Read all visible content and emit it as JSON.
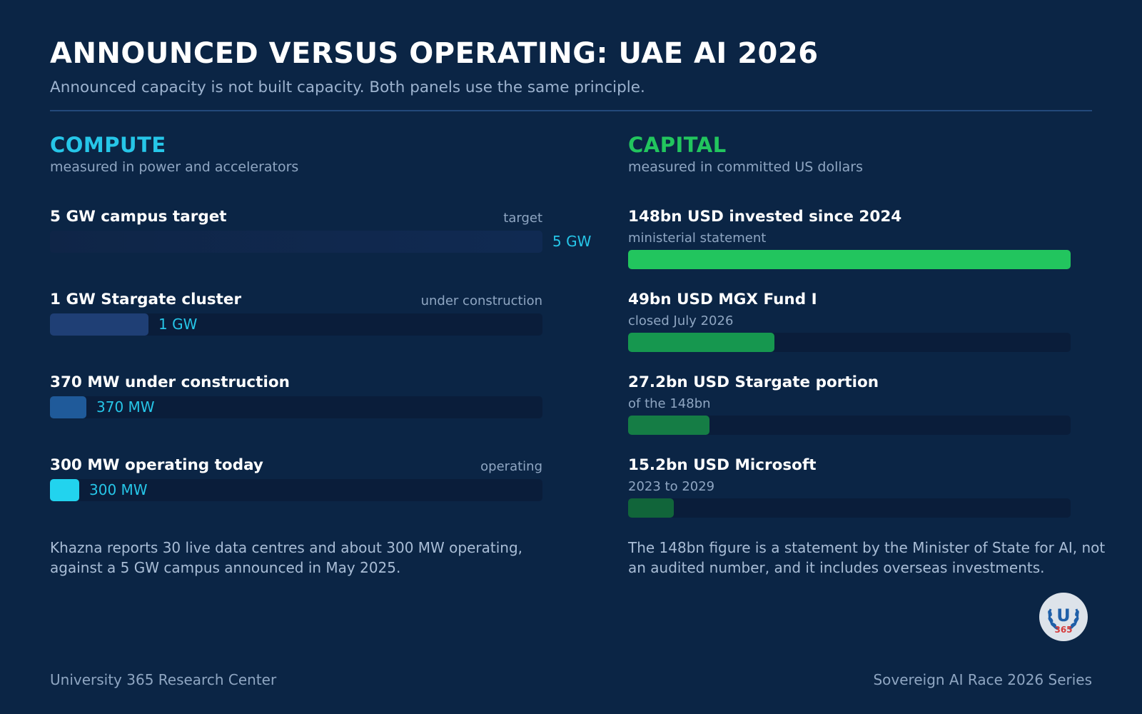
{
  "header": {
    "title": "ANNOUNCED VERSUS OPERATING: UAE AI 2026",
    "subtitle": "Announced capacity is not built capacity. Both panels use the same principle."
  },
  "colors": {
    "background": "#0b2545",
    "compute_accent": "#26c6e8",
    "capital_accent": "#22c55e"
  },
  "chart_data": [
    {
      "type": "bar",
      "title": "COMPUTE",
      "subtitle": "measured in power and accelerators",
      "unit": "MW",
      "xlim": [
        0,
        5000
      ],
      "bars": [
        {
          "label": "5 GW campus target",
          "status": "target",
          "value": 5000,
          "value_label": "5 GW",
          "color": "#102a52"
        },
        {
          "label": "1 GW Stargate cluster",
          "status": "under construction",
          "value": 1000,
          "value_label": "1 GW",
          "color": "#1f3f75"
        },
        {
          "label": "370 MW under construction",
          "status": "",
          "value": 370,
          "value_label": "370 MW",
          "color": "#1f5a9a"
        },
        {
          "label": "300 MW operating today",
          "status": "operating",
          "value": 300,
          "value_label": "300 MW",
          "color": "#22d3ee"
        }
      ],
      "note": "Khazna reports 30 live data centres and about 300 MW operating, against a 5 GW campus announced in May 2025."
    },
    {
      "type": "bar",
      "title": "CAPITAL",
      "subtitle": "measured in committed US dollars",
      "unit": "bn USD",
      "xlim": [
        0,
        148
      ],
      "bars": [
        {
          "label": "148bn USD invested since 2024",
          "status": "ministerial statement",
          "value": 148,
          "color": "#22c55e"
        },
        {
          "label": "49bn USD MGX Fund I",
          "status": "closed July 2026",
          "value": 49,
          "color": "#16974f"
        },
        {
          "label": "27.2bn USD Stargate portion",
          "status": "of the 148bn",
          "value": 27.2,
          "color": "#157d45"
        },
        {
          "label": "15.2bn USD Microsoft",
          "status": "2023 to 2029",
          "value": 15.2,
          "color": "#11653a"
        }
      ],
      "note": "The 148bn figure is a statement by the Minister of State for AI, not an audited number, and it includes overseas investments."
    }
  ],
  "logo": {
    "letter": "U",
    "number": "365"
  },
  "footer": {
    "left": "University 365 Research Center",
    "right": "Sovereign AI Race 2026 Series"
  }
}
